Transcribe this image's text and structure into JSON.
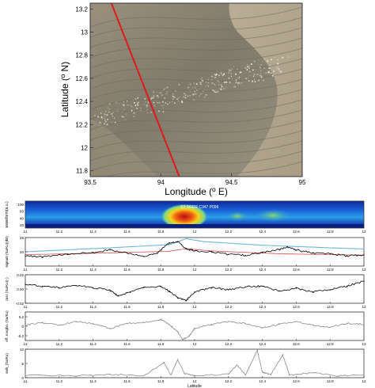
{
  "chart_data": [
    {
      "type": "image-map",
      "xlabel": "Longitude (º E)",
      "ylabel": "Latitude (º N)",
      "xlim": [
        93.5,
        95
      ],
      "ylim": [
        11.75,
        13.25
      ],
      "xticks": [
        "93.5",
        "94",
        "94.5",
        "95"
      ],
      "yticks": [
        "11.8",
        "12",
        "12.2",
        "12.4",
        "12.6",
        "12.8",
        "13",
        "13.2"
      ],
      "track": {
        "from": [
          93.65,
          13.25
        ],
        "to": [
          94.13,
          11.75
        ],
        "color": "#e01818"
      },
      "colors": {
        "sea": "#86806c",
        "land": "#b6ab95",
        "speckle": "#ece8e0"
      }
    },
    {
      "type": "heatmap",
      "ylabel": "waveform(a.u.)",
      "annotation": "S3 SGDR C347 P096",
      "xlim": [
        11,
        13
      ],
      "yticks": [
        "100",
        "60",
        "40",
        "20"
      ],
      "colormap": "jet"
    },
    {
      "type": "line",
      "ylabel": "sigma0 (Sa/Ku)(dB)",
      "xlim": [
        11,
        13
      ],
      "ylim": [
        15,
        25
      ],
      "yticks": [
        "25",
        "20"
      ],
      "xticks": [
        "11",
        "11.2",
        "11.4",
        "11.6",
        "11.8",
        "12",
        "12.2",
        "12.4",
        "12.6",
        "12.8",
        "13"
      ],
      "series": [
        {
          "color": "#6fb7d6",
          "points": [
            [
              11,
              20
            ],
            [
              11.5,
              21.4
            ],
            [
              11.85,
              22.5
            ],
            [
              11.95,
              24.6
            ],
            [
              12.05,
              23.6
            ],
            [
              12.4,
              22.3
            ],
            [
              12.8,
              21.4
            ],
            [
              13,
              21
            ]
          ]
        },
        {
          "color": "#d05050",
          "points": [
            [
              11,
              19
            ],
            [
              11.5,
              19.6
            ],
            [
              11.85,
              20.2
            ],
            [
              11.95,
              21.1
            ],
            [
              12.1,
              20.3
            ],
            [
              12.5,
              19.3
            ],
            [
              13,
              18.8
            ]
          ]
        },
        {
          "color": "#000000",
          "points": [
            [
              11,
              18.6
            ],
            [
              11.1,
              18.2
            ],
            [
              11.25,
              19.2
            ],
            [
              11.4,
              19.8
            ],
            [
              11.5,
              20.6
            ],
            [
              11.6,
              19.6
            ],
            [
              11.7,
              18.4
            ],
            [
              11.78,
              19.6
            ],
            [
              11.85,
              23.2
            ],
            [
              11.9,
              23.6
            ],
            [
              11.95,
              21.0
            ],
            [
              12.0,
              20.4
            ],
            [
              12.1,
              19.9
            ],
            [
              12.2,
              19.1
            ],
            [
              12.3,
              18.8
            ],
            [
              12.4,
              19.7
            ],
            [
              12.5,
              20.8
            ],
            [
              12.55,
              21.6
            ],
            [
              12.6,
              20.6
            ],
            [
              12.7,
              19.6
            ],
            [
              12.8,
              19.3
            ],
            [
              12.9,
              18.6
            ],
            [
              13,
              18.9
            ]
          ]
        }
      ]
    },
    {
      "type": "line",
      "ylabel": "mss (Sa/Ku)(-)",
      "xlim": [
        11,
        13
      ],
      "ylim": [
        -0.02,
        0.02
      ],
      "yticks": [
        "0.02",
        "0.00",
        "-0.02"
      ],
      "xticks": [
        "11",
        "11.2",
        "11.4",
        "11.6",
        "11.8",
        "12",
        "12.2",
        "12.4",
        "12.6",
        "12.8",
        "13"
      ],
      "series": [
        {
          "color": "#000000",
          "points": [
            [
              11,
              0.007
            ],
            [
              11.1,
              0.004
            ],
            [
              11.2,
              0.002
            ],
            [
              11.3,
              0.005
            ],
            [
              11.4,
              0.002
            ],
            [
              11.5,
              -0.002
            ],
            [
              11.55,
              -0.01
            ],
            [
              11.62,
              -0.004
            ],
            [
              11.7,
              0.002
            ],
            [
              11.8,
              0.004
            ],
            [
              11.85,
              -0.003
            ],
            [
              11.9,
              -0.012
            ],
            [
              11.95,
              -0.016
            ],
            [
              12.0,
              -0.004
            ],
            [
              12.1,
              0.002
            ],
            [
              12.2,
              -0.001
            ],
            [
              12.3,
              0.003
            ],
            [
              12.4,
              0.004
            ],
            [
              12.5,
              -0.003
            ],
            [
              12.6,
              0.001
            ],
            [
              12.7,
              -0.004
            ],
            [
              12.8,
              -0.001
            ],
            [
              12.9,
              0.004
            ],
            [
              13,
              0.011
            ]
          ]
        }
      ]
    },
    {
      "type": "line",
      "ylabel": "eff. roughn. (Sa/Ku)",
      "xlim": [
        11,
        13
      ],
      "ylim": [
        -0.3,
        0.3
      ],
      "yticks": [
        "0.2",
        "0",
        "-0.2"
      ],
      "xticks": [
        "11",
        "11.2",
        "11.4",
        "11.6",
        "11.8",
        "12",
        "12.2",
        "12.4",
        "12.6",
        "12.8",
        "13"
      ],
      "series": [
        {
          "color": "#8a8a8a",
          "points": [
            [
              11,
              0.02
            ],
            [
              11.1,
              0.08
            ],
            [
              11.2,
              0.02
            ],
            [
              11.3,
              0.1
            ],
            [
              11.4,
              0.06
            ],
            [
              11.5,
              -0.05
            ],
            [
              11.6,
              0.06
            ],
            [
              11.7,
              0.08
            ],
            [
              11.8,
              0.14
            ],
            [
              11.85,
              0.04
            ],
            [
              11.9,
              -0.12
            ],
            [
              11.93,
              -0.28
            ],
            [
              11.97,
              -0.2
            ],
            [
              12.0,
              -0.05
            ],
            [
              12.1,
              0.04
            ],
            [
              12.2,
              0.1
            ],
            [
              12.3,
              0.06
            ],
            [
              12.4,
              -0.04
            ],
            [
              12.5,
              0.04
            ],
            [
              12.6,
              0.1
            ],
            [
              12.7,
              0.02
            ],
            [
              12.8,
              -0.02
            ],
            [
              12.9,
              0.06
            ],
            [
              13,
              0.04
            ]
          ]
        }
      ]
    },
    {
      "type": "line",
      "ylabel": "swh_(Sa/Ku)",
      "xlim": [
        11,
        13
      ],
      "ylim": [
        0,
        10
      ],
      "yticks": [
        "10",
        "5",
        "0"
      ],
      "xticks": [
        "11",
        "11.2",
        "11.4",
        "11.6",
        "11.8",
        "12",
        "12.2",
        "12.4",
        "12.6",
        "12.8",
        "13"
      ],
      "xlabel": "Latitude",
      "series": [
        {
          "color": "#8a8a8a",
          "points": [
            [
              11,
              1.0
            ],
            [
              11.3,
              0.6
            ],
            [
              11.5,
              1.2
            ],
            [
              11.7,
              0.8
            ],
            [
              11.82,
              5.2
            ],
            [
              11.86,
              1.0
            ],
            [
              11.9,
              6.4
            ],
            [
              11.94,
              1.5
            ],
            [
              12.0,
              0.8
            ],
            [
              12.2,
              1.2
            ],
            [
              12.25,
              4.5
            ],
            [
              12.3,
              1.0
            ],
            [
              12.37,
              9.5
            ],
            [
              12.4,
              2.0
            ],
            [
              12.45,
              1.0
            ],
            [
              12.52,
              8.0
            ],
            [
              12.56,
              1.0
            ],
            [
              12.7,
              1.8
            ],
            [
              12.85,
              0.6
            ],
            [
              13,
              1.0
            ]
          ]
        }
      ]
    }
  ]
}
